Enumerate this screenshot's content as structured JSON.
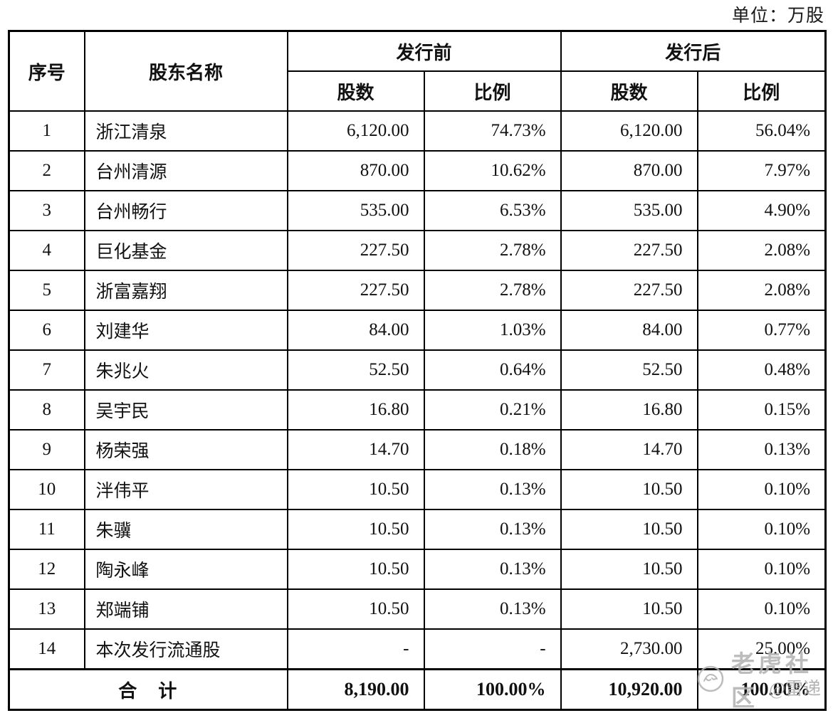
{
  "unit_label": "单位：万股",
  "table": {
    "header": {
      "col_no": "序号",
      "col_name": "股东名称",
      "group_pre": "发行前",
      "group_post": "发行后",
      "col_shares": "股数",
      "col_ratio": "比例"
    },
    "rows": [
      {
        "no": "1",
        "name": "浙江清泉",
        "pre_shares": "6,120.00",
        "pre_ratio": "74.73%",
        "post_shares": "6,120.00",
        "post_ratio": "56.04%"
      },
      {
        "no": "2",
        "name": "台州清源",
        "pre_shares": "870.00",
        "pre_ratio": "10.62%",
        "post_shares": "870.00",
        "post_ratio": "7.97%"
      },
      {
        "no": "3",
        "name": "台州畅行",
        "pre_shares": "535.00",
        "pre_ratio": "6.53%",
        "post_shares": "535.00",
        "post_ratio": "4.90%"
      },
      {
        "no": "4",
        "name": "巨化基金",
        "pre_shares": "227.50",
        "pre_ratio": "2.78%",
        "post_shares": "227.50",
        "post_ratio": "2.08%"
      },
      {
        "no": "5",
        "name": "浙富嘉翔",
        "pre_shares": "227.50",
        "pre_ratio": "2.78%",
        "post_shares": "227.50",
        "post_ratio": "2.08%"
      },
      {
        "no": "6",
        "name": "刘建华",
        "pre_shares": "84.00",
        "pre_ratio": "1.03%",
        "post_shares": "84.00",
        "post_ratio": "0.77%"
      },
      {
        "no": "7",
        "name": "朱兆火",
        "pre_shares": "52.50",
        "pre_ratio": "0.64%",
        "post_shares": "52.50",
        "post_ratio": "0.48%"
      },
      {
        "no": "8",
        "name": "吴宇民",
        "pre_shares": "16.80",
        "pre_ratio": "0.21%",
        "post_shares": "16.80",
        "post_ratio": "0.15%"
      },
      {
        "no": "9",
        "name": "杨荣强",
        "pre_shares": "14.70",
        "pre_ratio": "0.18%",
        "post_shares": "14.70",
        "post_ratio": "0.13%"
      },
      {
        "no": "10",
        "name": "泮伟平",
        "pre_shares": "10.50",
        "pre_ratio": "0.13%",
        "post_shares": "10.50",
        "post_ratio": "0.10%"
      },
      {
        "no": "11",
        "name": "朱骥",
        "pre_shares": "10.50",
        "pre_ratio": "0.13%",
        "post_shares": "10.50",
        "post_ratio": "0.10%"
      },
      {
        "no": "12",
        "name": "陶永峰",
        "pre_shares": "10.50",
        "pre_ratio": "0.13%",
        "post_shares": "10.50",
        "post_ratio": "0.10%"
      },
      {
        "no": "13",
        "name": "郑端铺",
        "pre_shares": "10.50",
        "pre_ratio": "0.13%",
        "post_shares": "10.50",
        "post_ratio": "0.10%"
      },
      {
        "no": "14",
        "name": "本次发行流通股",
        "pre_shares": "-",
        "pre_ratio": "-",
        "post_shares": "2,730.00",
        "post_ratio": "25.00%"
      }
    ],
    "total": {
      "label": "合　计",
      "pre_shares": "8,190.00",
      "pre_ratio": "100.00%",
      "post_shares": "10,920.00",
      "post_ratio": "100.00%"
    }
  },
  "watermark": {
    "community": "老虎社区",
    "author": "@雷递",
    "color": "#b0b0b0"
  },
  "colors": {
    "border": "#000000",
    "text": "#111111",
    "background": "#ffffff"
  }
}
